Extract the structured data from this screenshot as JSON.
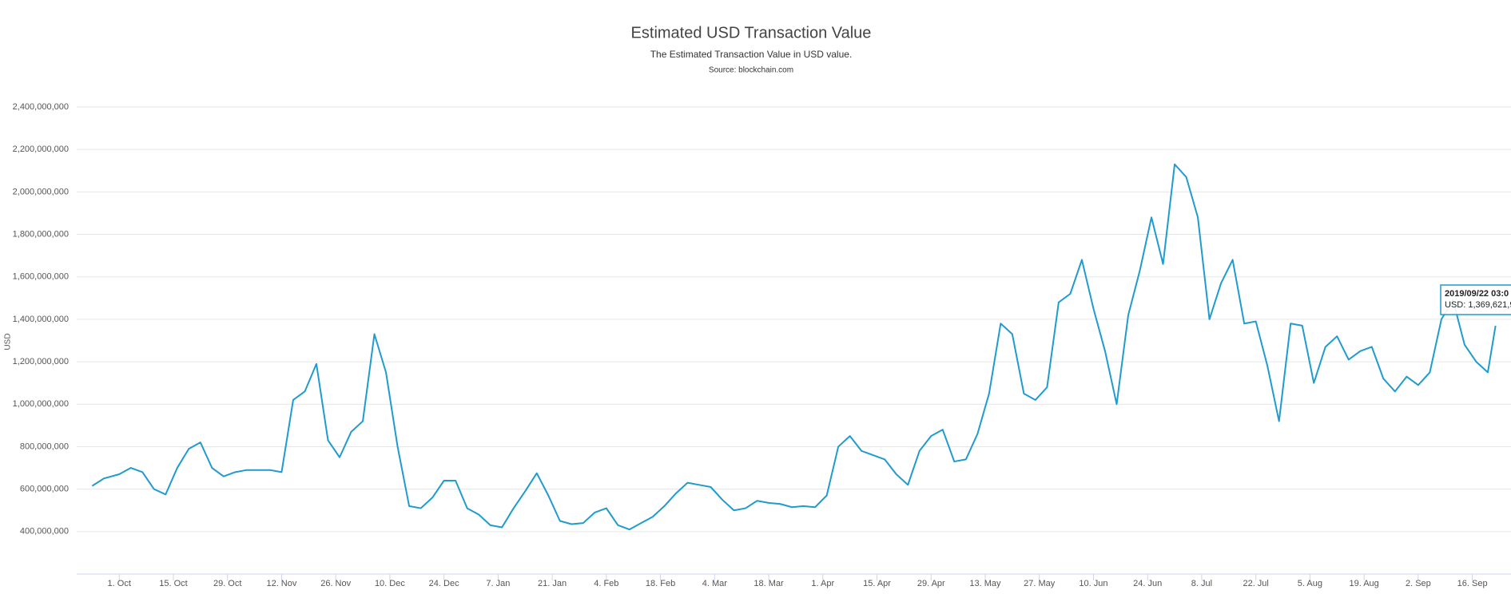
{
  "chart_data": {
    "type": "line",
    "title": "Estimated USD Transaction Value",
    "subtitle": "The Estimated Transaction Value in USD value.",
    "source": "Source: blockchain.com",
    "y_label": "USD",
    "grid": true,
    "x": [
      "2018-09-24",
      "2018-09-27",
      "2018-10-01",
      "2018-10-04",
      "2018-10-07",
      "2018-10-10",
      "2018-10-13",
      "2018-10-16",
      "2018-10-19",
      "2018-10-22",
      "2018-10-25",
      "2018-10-28",
      "2018-10-31",
      "2018-11-03",
      "2018-11-06",
      "2018-11-09",
      "2018-11-12",
      "2018-11-15",
      "2018-11-18",
      "2018-11-21",
      "2018-11-24",
      "2018-11-27",
      "2018-11-30",
      "2018-12-03",
      "2018-12-06",
      "2018-12-09",
      "2018-12-12",
      "2018-12-15",
      "2018-12-18",
      "2018-12-21",
      "2018-12-24",
      "2018-12-27",
      "2018-12-30",
      "2019-01-02",
      "2019-01-05",
      "2019-01-08",
      "2019-01-11",
      "2019-01-14",
      "2019-01-17",
      "2019-01-20",
      "2019-01-23",
      "2019-01-26",
      "2019-01-29",
      "2019-02-01",
      "2019-02-04",
      "2019-02-07",
      "2019-02-10",
      "2019-02-13",
      "2019-02-16",
      "2019-02-19",
      "2019-02-22",
      "2019-02-25",
      "2019-02-28",
      "2019-03-03",
      "2019-03-06",
      "2019-03-09",
      "2019-03-12",
      "2019-03-15",
      "2019-03-18",
      "2019-03-21",
      "2019-03-24",
      "2019-03-27",
      "2019-03-30",
      "2019-04-02",
      "2019-04-05",
      "2019-04-08",
      "2019-04-11",
      "2019-04-14",
      "2019-04-17",
      "2019-04-20",
      "2019-04-23",
      "2019-04-26",
      "2019-04-29",
      "2019-05-02",
      "2019-05-05",
      "2019-05-08",
      "2019-05-11",
      "2019-05-14",
      "2019-05-17",
      "2019-05-20",
      "2019-05-23",
      "2019-05-26",
      "2019-05-29",
      "2019-06-01",
      "2019-06-04",
      "2019-06-07",
      "2019-06-10",
      "2019-06-13",
      "2019-06-16",
      "2019-06-19",
      "2019-06-22",
      "2019-06-25",
      "2019-06-28",
      "2019-07-01",
      "2019-07-04",
      "2019-07-07",
      "2019-07-10",
      "2019-07-13",
      "2019-07-16",
      "2019-07-19",
      "2019-07-22",
      "2019-07-25",
      "2019-07-28",
      "2019-07-31",
      "2019-08-03",
      "2019-08-06",
      "2019-08-09",
      "2019-08-12",
      "2019-08-15",
      "2019-08-18",
      "2019-08-21",
      "2019-08-24",
      "2019-08-27",
      "2019-08-30",
      "2019-09-02",
      "2019-09-05",
      "2019-09-08",
      "2019-09-11",
      "2019-09-14",
      "2019-09-17",
      "2019-09-20",
      "2019-09-22"
    ],
    "series": [
      {
        "name": "USD",
        "color": "#1f9bcf",
        "values": [
          615000000,
          650000000,
          670000000,
          700000000,
          680000000,
          600000000,
          575000000,
          700000000,
          790000000,
          820000000,
          700000000,
          660000000,
          680000000,
          690000000,
          690000000,
          690000000,
          680000000,
          1020000000,
          1060000000,
          1190000000,
          830000000,
          750000000,
          870000000,
          920000000,
          1330000000,
          1150000000,
          800000000,
          520000000,
          510000000,
          560000000,
          640000000,
          640000000,
          510000000,
          480000000,
          430000000,
          420000000,
          510000000,
          590000000,
          675000000,
          570000000,
          450000000,
          435000000,
          440000000,
          490000000,
          510000000,
          430000000,
          410000000,
          440000000,
          470000000,
          520000000,
          580000000,
          630000000,
          620000000,
          610000000,
          550000000,
          500000000,
          510000000,
          545000000,
          535000000,
          530000000,
          515000000,
          520000000,
          515000000,
          570000000,
          800000000,
          850000000,
          780000000,
          760000000,
          740000000,
          670000000,
          620000000,
          780000000,
          850000000,
          880000000,
          730000000,
          740000000,
          860000000,
          1050000000,
          1380000000,
          1330000000,
          1050000000,
          1020000000,
          1080000000,
          1480000000,
          1520000000,
          1680000000,
          1450000000,
          1250000000,
          1000000000,
          1420000000,
          1630000000,
          1880000000,
          1660000000,
          2130000000,
          2070000000,
          1880000000,
          1400000000,
          1570000000,
          1680000000,
          1380000000,
          1390000000,
          1180000000,
          920000000,
          1380000000,
          1370000000,
          1100000000,
          1270000000,
          1320000000,
          1210000000,
          1250000000,
          1270000000,
          1120000000,
          1060000000,
          1130000000,
          1090000000,
          1150000000,
          1400000000,
          1490000000,
          1280000000,
          1200000000,
          1150000000,
          1369621900
        ]
      }
    ],
    "xlim": [
      "2018-09-20",
      "2019-09-26"
    ],
    "xticks": [
      {
        "value": "2018-10-01",
        "label": "1. Oct"
      },
      {
        "value": "2018-10-15",
        "label": "15. Oct"
      },
      {
        "value": "2018-10-29",
        "label": "29. Oct"
      },
      {
        "value": "2018-11-12",
        "label": "12. Nov"
      },
      {
        "value": "2018-11-26",
        "label": "26. Nov"
      },
      {
        "value": "2018-12-10",
        "label": "10. Dec"
      },
      {
        "value": "2018-12-24",
        "label": "24. Dec"
      },
      {
        "value": "2019-01-07",
        "label": "7. Jan"
      },
      {
        "value": "2019-01-21",
        "label": "21. Jan"
      },
      {
        "value": "2019-02-04",
        "label": "4. Feb"
      },
      {
        "value": "2019-02-18",
        "label": "18. Feb"
      },
      {
        "value": "2019-03-04",
        "label": "4. Mar"
      },
      {
        "value": "2019-03-18",
        "label": "18. Mar"
      },
      {
        "value": "2019-04-01",
        "label": "1. Apr"
      },
      {
        "value": "2019-04-15",
        "label": "15. Apr"
      },
      {
        "value": "2019-04-29",
        "label": "29. Apr"
      },
      {
        "value": "2019-05-13",
        "label": "13. May"
      },
      {
        "value": "2019-05-27",
        "label": "27. May"
      },
      {
        "value": "2019-06-10",
        "label": "10. Jun"
      },
      {
        "value": "2019-06-24",
        "label": "24. Jun"
      },
      {
        "value": "2019-07-08",
        "label": "8. Jul"
      },
      {
        "value": "2019-07-22",
        "label": "22. Jul"
      },
      {
        "value": "2019-08-05",
        "label": "5. Aug"
      },
      {
        "value": "2019-08-19",
        "label": "19. Aug"
      },
      {
        "value": "2019-09-02",
        "label": "2. Sep"
      },
      {
        "value": "2019-09-16",
        "label": "16. Sep"
      }
    ],
    "ylim": [
      200000000,
      2400000000
    ],
    "yticks": [
      {
        "value": 400000000,
        "label": "400,000,000"
      },
      {
        "value": 600000000,
        "label": "600,000,000"
      },
      {
        "value": 800000000,
        "label": "800,000,000"
      },
      {
        "value": 1000000000,
        "label": "1,000,000,000"
      },
      {
        "value": 1200000000,
        "label": "1,200,000,000"
      },
      {
        "value": 1400000000,
        "label": "1,400,000,000"
      },
      {
        "value": 1600000000,
        "label": "1,600,000,000"
      },
      {
        "value": 1800000000,
        "label": "1,800,000,000"
      },
      {
        "value": 2000000000,
        "label": "2,000,000,000"
      },
      {
        "value": 2200000000,
        "label": "2,200,000,000"
      },
      {
        "value": 2400000000,
        "label": "2,400,000,000"
      }
    ],
    "tooltip": {
      "date": "2019/09/22 03:0",
      "text": "USD: 1,369,621,9"
    }
  }
}
